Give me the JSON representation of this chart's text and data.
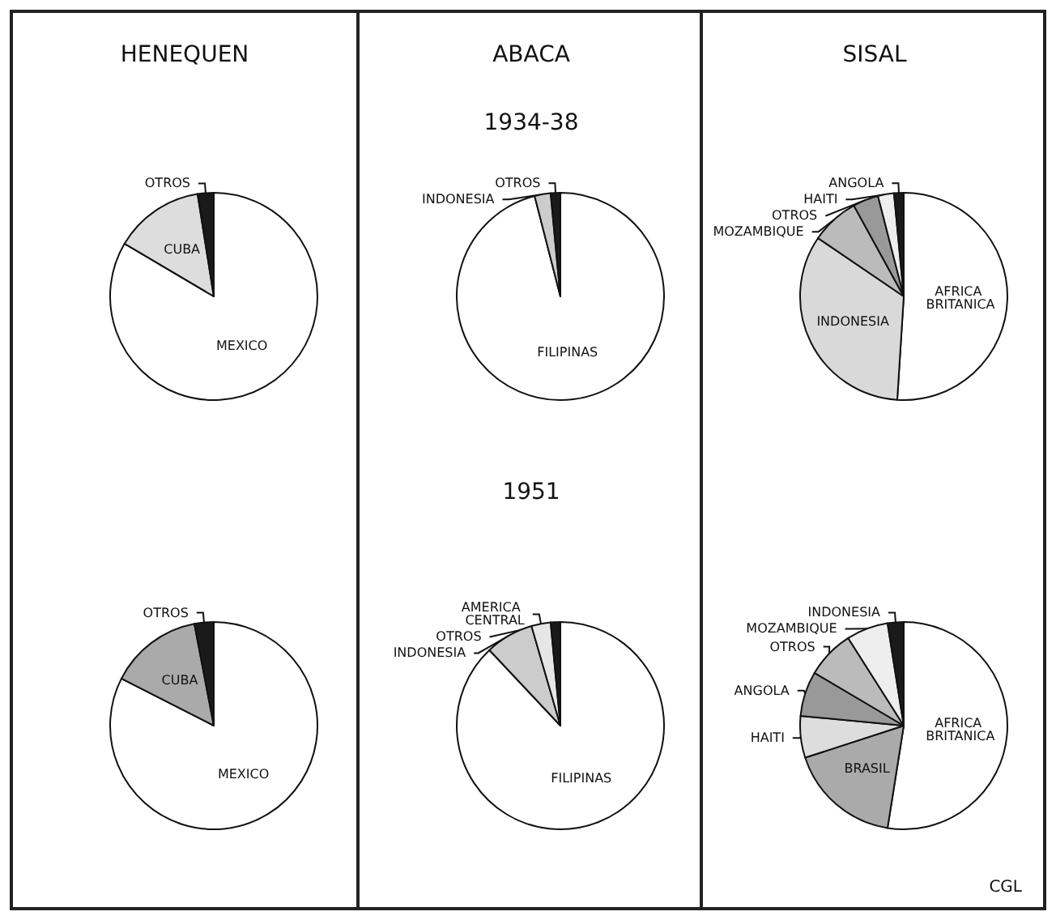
{
  "chart_data": [
    {
      "type": "pie",
      "title": "HENEQUEN",
      "categories": [
        "MEXICO",
        "CUBA",
        "OTROS"
      ],
      "values": [
        83.5,
        14,
        2.5
      ],
      "colors": [
        "#ffffff",
        "#dddddd",
        "#1a1a1a"
      ]
    },
    {
      "type": "pie",
      "title": "ABACA",
      "subtitle": "1934-38",
      "categories": [
        "FILIPINAS",
        "INDONESIA",
        "OTROS"
      ],
      "values": [
        96,
        2.5,
        1.5
      ],
      "colors": [
        "#ffffff",
        "#cccccc",
        "#1a1a1a"
      ]
    },
    {
      "type": "pie",
      "title": "SISAL",
      "categories": [
        "AFRICA BRITANICA",
        "INDONESIA",
        "MOZAMBIQUE",
        "OTROS",
        "HAITI",
        "ANGOLA"
      ],
      "values": [
        51,
        33.5,
        7.5,
        4,
        2.5,
        1.5
      ],
      "colors": [
        "#ffffff",
        "#d9d9d9",
        "#bbbbbb",
        "#999999",
        "#eeeeee",
        "#1a1a1a"
      ]
    },
    {
      "type": "pie",
      "categories": [
        "MEXICO",
        "CUBA",
        "OTROS"
      ],
      "values": [
        82.5,
        14.5,
        3
      ],
      "colors": [
        "#ffffff",
        "#aaaaaa",
        "#1a1a1a"
      ]
    },
    {
      "type": "pie",
      "subtitle": "1951",
      "categories": [
        "FILIPINAS",
        "INDONESIA",
        "AMERICA CENTRAL",
        "OTROS"
      ],
      "values": [
        88,
        7.5,
        3,
        1.5
      ],
      "colors": [
        "#ffffff",
        "#cccccc",
        "#e6e6e6",
        "#1a1a1a"
      ]
    },
    {
      "type": "pie",
      "annotations": [
        "CGL"
      ],
      "categories": [
        "AFRICA BRITANICA",
        "BRASIL",
        "HAITI",
        "ANGOLA",
        "OTROS",
        "MOZAMBIQUE",
        "INDONESIA"
      ],
      "values": [
        52.5,
        17.5,
        6.5,
        7,
        7.5,
        6.5,
        2.5
      ],
      "colors": [
        "#ffffff",
        "#aaaaaa",
        "#dddddd",
        "#999999",
        "#bbbbbb",
        "#eeeeee",
        "#1a1a1a"
      ]
    }
  ]
}
